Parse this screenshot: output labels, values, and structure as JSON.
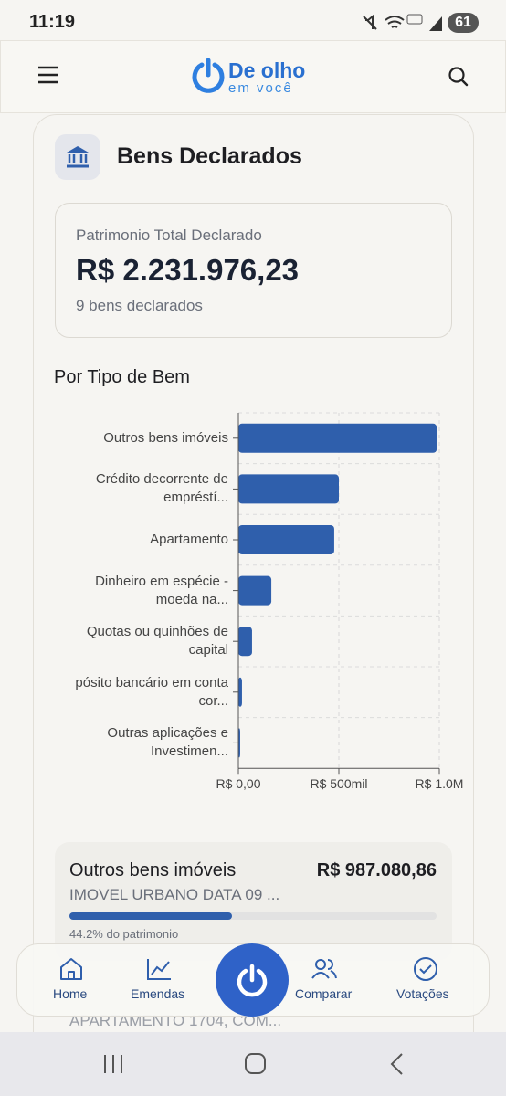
{
  "status_bar": {
    "time": "11:19",
    "battery": "61"
  },
  "header": {
    "logo_top": "De olho",
    "logo_bottom": "em você"
  },
  "card": {
    "title": "Bens Declarados"
  },
  "summary": {
    "label": "Patrimonio Total Declarado",
    "total": "R$ 2.231.976,23",
    "count": "9 bens declarados"
  },
  "chart_data": {
    "type": "hbar",
    "title": "Por Tipo de Bem",
    "categories": [
      "Outros bens imóveis",
      "Crédito decorrente de empréstí...",
      "Apartamento",
      "Dinheiro em espécie - moeda na...",
      "Quotas ou quinhões de capital",
      "pósito bancário em conta cor...",
      "Outras aplicações e Investimen..."
    ],
    "values": [
      987080.86,
      500000,
      477000,
      164000,
      68000,
      18000,
      9000
    ],
    "color": "#2f5fac",
    "xlim": [
      0,
      1000000
    ],
    "xticks": [
      {
        "value": 0,
        "label": "R$ 0,00"
      },
      {
        "value": 500000,
        "label": "R$ 500mil"
      },
      {
        "value": 1000000,
        "label": "R$ 1.0M"
      }
    ],
    "grid": true
  },
  "items": [
    {
      "name": "Outros bens imóveis",
      "amount": "R$ 987.080,86",
      "description": "IMOVEL URBANO DATA 09 ...",
      "share": 44.2,
      "share_label": "44.2% do patrimonio"
    },
    {
      "description": "APARTAMENTO 1704, COM..."
    }
  ],
  "nav": {
    "items": [
      "Home",
      "Emendas",
      "Comparar",
      "Votações"
    ]
  }
}
